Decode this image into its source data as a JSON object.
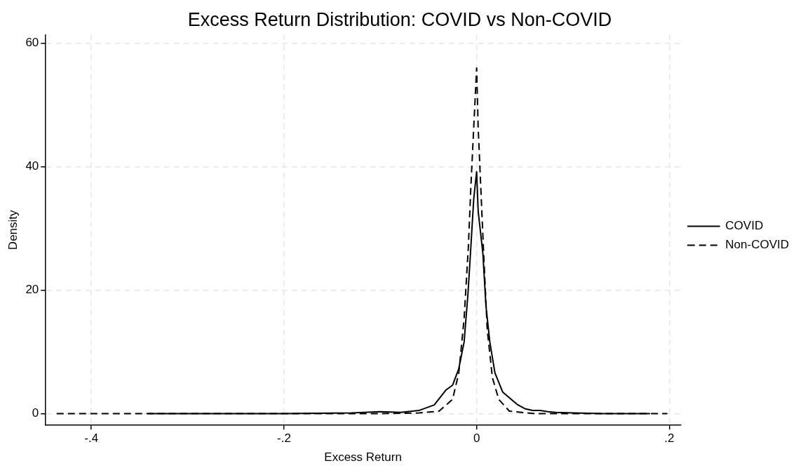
{
  "chart_data": {
    "type": "line",
    "title": "Excess Return Distribution: COVID vs Non-COVID",
    "xlabel": "Excess Return",
    "ylabel": "Density",
    "xlim": [
      -0.448,
      0.212
    ],
    "xticks": [
      {
        "value": -0.4,
        "label": "-.4"
      },
      {
        "value": -0.2,
        "label": "-.2"
      },
      0,
      {
        "value": 0.2,
        "label": ".2"
      }
    ],
    "ylim": [
      -1.9,
      61.4
    ],
    "yticks": [
      0,
      20,
      40,
      60
    ],
    "grid": true,
    "legend": "right",
    "marker": "none",
    "series": [
      {
        "name": "COVID",
        "color": "#000000",
        "line_style": "solid",
        "x": [
          -0.341,
          -0.2,
          -0.13,
          -0.1,
          -0.079,
          -0.06,
          -0.044,
          -0.032,
          -0.025,
          -0.0185,
          -0.013,
          -0.009,
          -0.006,
          -0.003,
          0,
          0.0016,
          0.0065,
          0.0097,
          0.0137,
          0.019,
          0.027,
          0.042,
          0.05,
          0.058,
          0.066,
          0.074,
          0.082,
          0.1,
          0.13,
          0.18
        ],
        "values": [
          0,
          0,
          0.1,
          0.3,
          0.2,
          0.5,
          1.4,
          3.8,
          4.6,
          7.3,
          11.6,
          19.4,
          27,
          34.8,
          39.2,
          32.8,
          25.9,
          17.4,
          11.6,
          6.6,
          3.5,
          1.5,
          0.8,
          0.5,
          0.5,
          0.3,
          0.2,
          0.1,
          0,
          0
        ]
      },
      {
        "name": "Non-COVID",
        "color": "#000000",
        "line_style": "dashed",
        "x": [
          -0.436,
          -0.2,
          -0.1,
          -0.06,
          -0.039,
          -0.025,
          -0.0185,
          -0.013,
          -0.0086,
          -0.006,
          -0.003,
          0,
          0.0016,
          0.0043,
          0.0075,
          0.011,
          0.0164,
          0.023,
          0.034,
          0.06,
          0.1,
          0.198
        ],
        "values": [
          0,
          0,
          0,
          0.1,
          0.4,
          2.3,
          6.6,
          15.4,
          27,
          36.7,
          46.4,
          56,
          46.4,
          36.7,
          25.2,
          13.6,
          5.8,
          2.3,
          0.4,
          0,
          0,
          0
        ]
      }
    ]
  }
}
